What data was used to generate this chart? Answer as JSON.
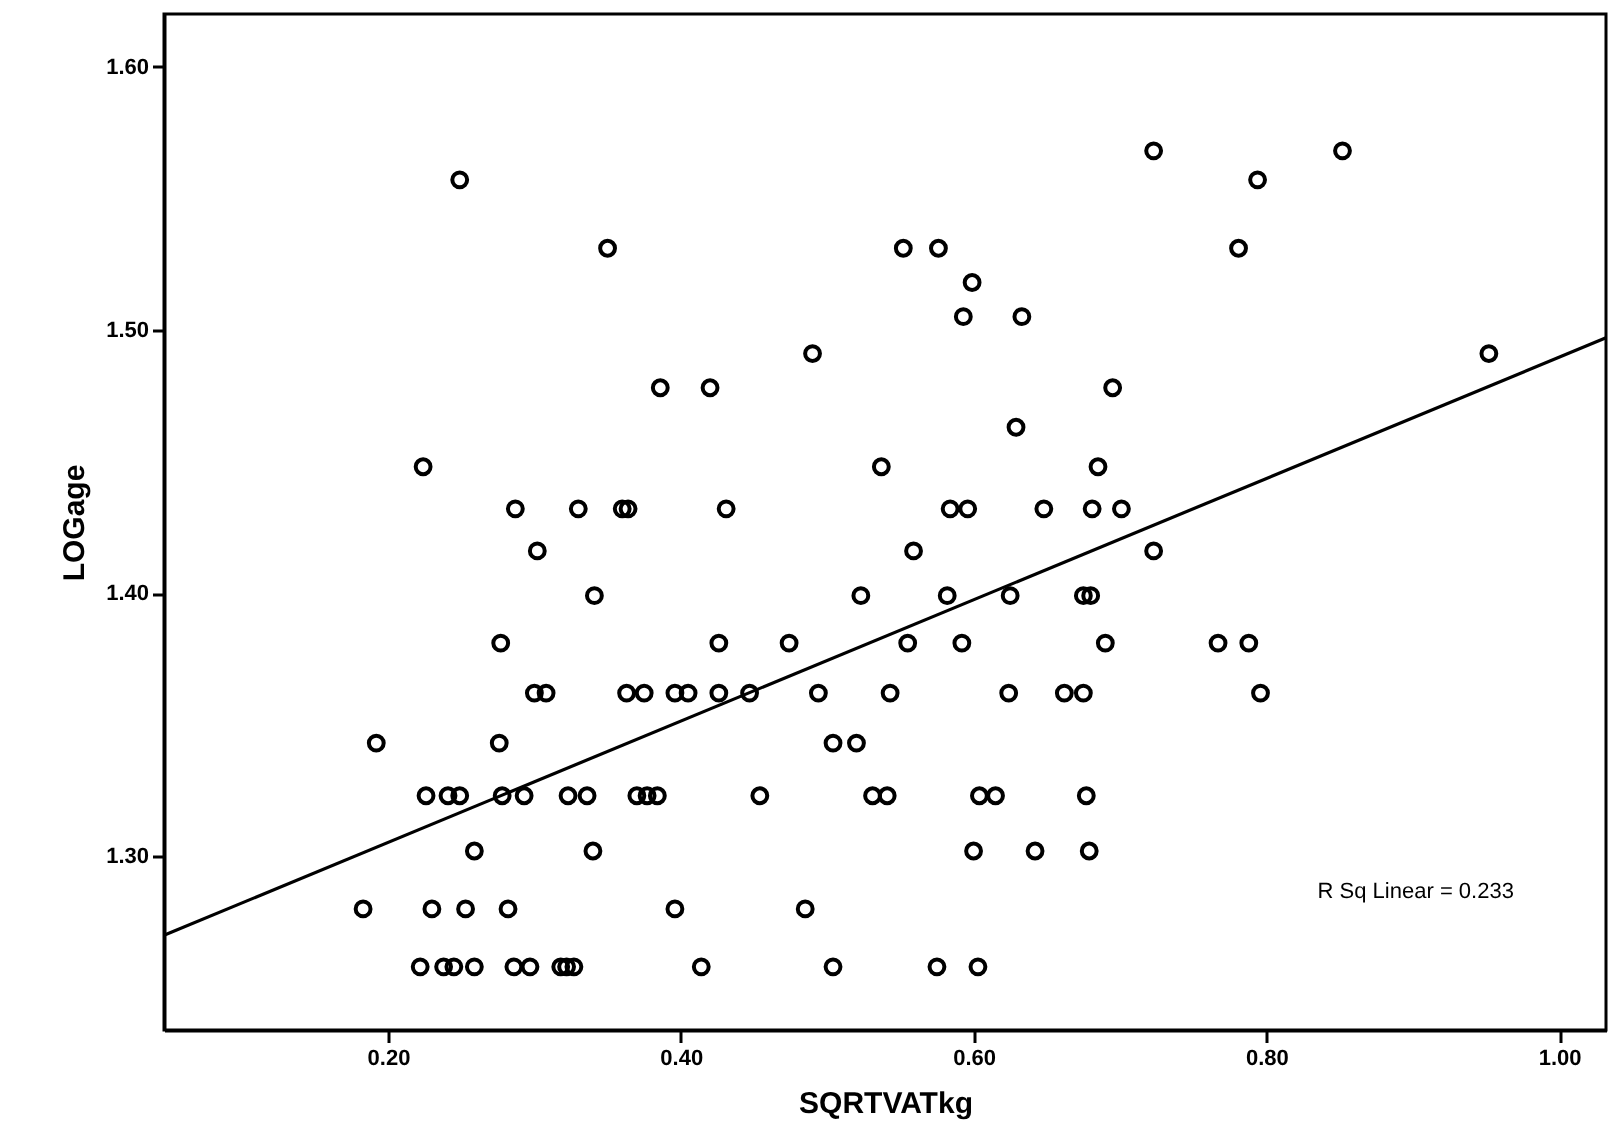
{
  "chart_data": {
    "type": "scatter",
    "xlabel": "SQRTVATkg",
    "ylabel": "LOGage",
    "xlim": [
      0.047,
      1.032
    ],
    "ylim": [
      1.234,
      1.62
    ],
    "xticks": [
      {
        "value": 0.2,
        "label": "0.20"
      },
      {
        "value": 0.4,
        "label": "0.40"
      },
      {
        "value": 0.6,
        "label": "0.60"
      },
      {
        "value": 0.8,
        "label": "0.80"
      },
      {
        "value": 1.0,
        "label": "1.00"
      }
    ],
    "yticks": [
      {
        "value": 1.3,
        "label": "1.30"
      },
      {
        "value": 1.4,
        "label": "1.40"
      },
      {
        "value": 1.5,
        "label": "1.50"
      },
      {
        "value": 1.6,
        "label": "1.60"
      }
    ],
    "grid": false,
    "annotations": [
      "R Sq Linear = 0.233"
    ],
    "series": [
      {
        "marker": "circle",
        "color": "#000000",
        "x": [
          0.249,
          0.35,
          0.49,
          0.386,
          0.42,
          0.224,
          0.287,
          0.33,
          0.36,
          0.364,
          0.431,
          0.302,
          0.723,
          0.852,
          0.794,
          0.552,
          0.576,
          0.781,
          0.599,
          0.593,
          0.633,
          0.952,
          0.695,
          0.629,
          0.537,
          0.685,
          0.584,
          0.596,
          0.648,
          0.681,
          0.701,
          0.559,
          0.723,
          0.341,
          0.277,
          0.426,
          0.474,
          0.3,
          0.308,
          0.363,
          0.375,
          0.396,
          0.405,
          0.426,
          0.447,
          0.494,
          0.192,
          0.276,
          0.504,
          0.226,
          0.241,
          0.249,
          0.278,
          0.293,
          0.323,
          0.336,
          0.37,
          0.377,
          0.384,
          0.454,
          0.259,
          0.34,
          0.183,
          0.23,
          0.253,
          0.282,
          0.396,
          0.485,
          0.222,
          0.238,
          0.245,
          0.259,
          0.286,
          0.297,
          0.318,
          0.322,
          0.327,
          0.414,
          0.504,
          0.523,
          0.582,
          0.625,
          0.675,
          0.68,
          0.555,
          0.592,
          0.69,
          0.767,
          0.788,
          0.543,
          0.624,
          0.662,
          0.675,
          0.796,
          0.52,
          0.531,
          0.541,
          0.604,
          0.615,
          0.677,
          0.6,
          0.642,
          0.679,
          0.575,
          0.603
        ],
        "values": [
          1.557,
          1.531,
          1.491,
          1.478,
          1.478,
          1.448,
          1.432,
          1.432,
          1.432,
          1.432,
          1.432,
          1.416,
          1.568,
          1.568,
          1.557,
          1.531,
          1.531,
          1.531,
          1.518,
          1.505,
          1.505,
          1.491,
          1.478,
          1.463,
          1.448,
          1.448,
          1.432,
          1.432,
          1.432,
          1.432,
          1.432,
          1.416,
          1.416,
          1.399,
          1.381,
          1.381,
          1.381,
          1.362,
          1.362,
          1.362,
          1.362,
          1.362,
          1.362,
          1.362,
          1.362,
          1.362,
          1.343,
          1.343,
          1.343,
          1.323,
          1.323,
          1.323,
          1.323,
          1.323,
          1.323,
          1.323,
          1.323,
          1.323,
          1.323,
          1.323,
          1.302,
          1.302,
          1.28,
          1.28,
          1.28,
          1.28,
          1.28,
          1.28,
          1.258,
          1.258,
          1.258,
          1.258,
          1.258,
          1.258,
          1.258,
          1.258,
          1.258,
          1.258,
          1.258,
          1.399,
          1.399,
          1.399,
          1.399,
          1.399,
          1.381,
          1.381,
          1.381,
          1.381,
          1.381,
          1.362,
          1.362,
          1.362,
          1.362,
          1.362,
          1.343,
          1.323,
          1.323,
          1.323,
          1.323,
          1.323,
          1.302,
          1.302,
          1.302,
          1.258,
          1.258
        ]
      },
      {
        "type": "line",
        "color": "#000000",
        "x": [
          0.047,
          1.032
        ],
        "values": [
          1.27,
          1.497
        ]
      }
    ]
  }
}
